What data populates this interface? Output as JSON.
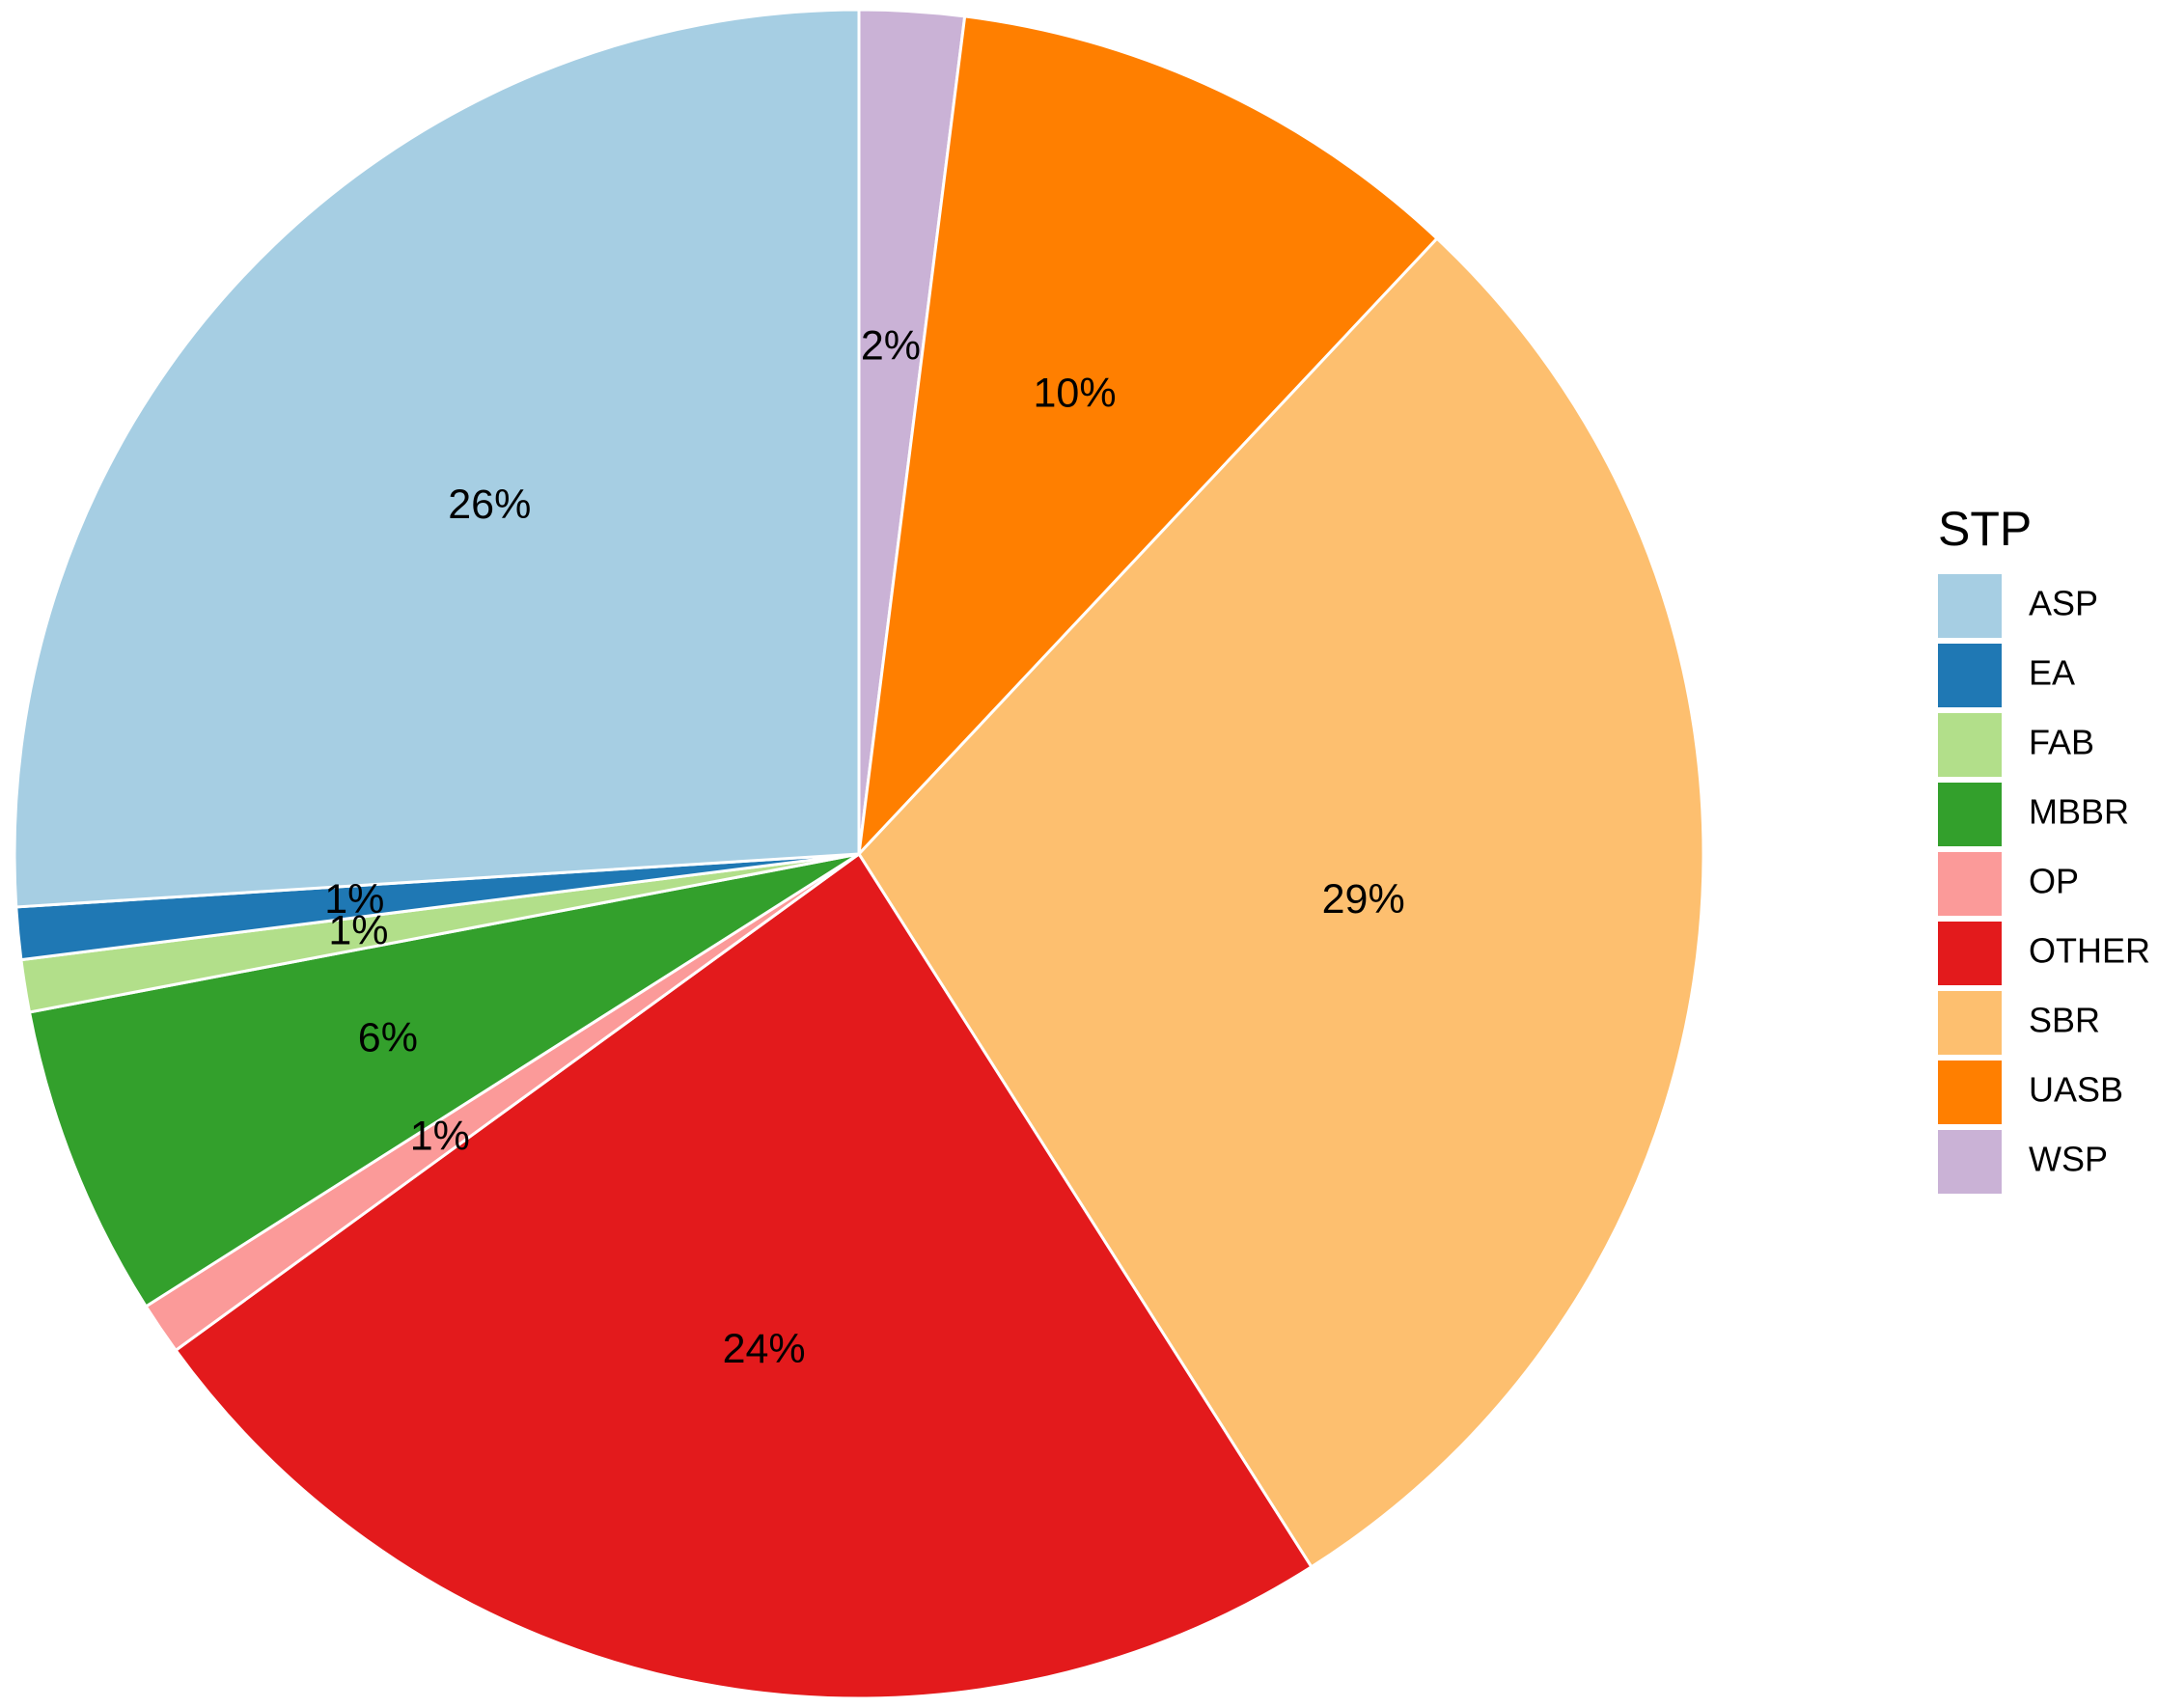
{
  "chart_data": {
    "type": "pie",
    "legend_title": "STP",
    "legend_position": "right",
    "start_angle": "12 o'clock",
    "direction": "clockwise",
    "slices": [
      {
        "category": "WSP",
        "value": 2,
        "label": "2%",
        "color": "#CAB2D6"
      },
      {
        "category": "UASB",
        "value": 10,
        "label": "10%",
        "color": "#FF7F00"
      },
      {
        "category": "SBR",
        "value": 29,
        "label": "29%",
        "color": "#FDBF6F"
      },
      {
        "category": "OTHER",
        "value": 24,
        "label": "24%",
        "color": "#E31A1C"
      },
      {
        "category": "OP",
        "value": 1,
        "label": "1%",
        "color": "#FB9A99"
      },
      {
        "category": "MBBR",
        "value": 6,
        "label": "6%",
        "color": "#33A02C"
      },
      {
        "category": "FAB",
        "value": 1,
        "label": "1%",
        "color": "#B2DF8A"
      },
      {
        "category": "EA",
        "value": 1,
        "label": "1%",
        "color": "#1F78B4"
      },
      {
        "category": "ASP",
        "value": 26,
        "label": "26%",
        "color": "#A6CEE3"
      }
    ],
    "legend_entries": [
      {
        "name": "ASP",
        "color": "#A6CEE3"
      },
      {
        "name": "EA",
        "color": "#1F78B4"
      },
      {
        "name": "FAB",
        "color": "#B2DF8A"
      },
      {
        "name": "MBBR",
        "color": "#33A02C"
      },
      {
        "name": "OP",
        "color": "#FB9A99"
      },
      {
        "name": "OTHER",
        "color": "#E31A1C"
      },
      {
        "name": "SBR",
        "color": "#FDBF6F"
      },
      {
        "name": "UASB",
        "color": "#FF7F00"
      },
      {
        "name": "WSP",
        "color": "#CAB2D6"
      }
    ]
  }
}
